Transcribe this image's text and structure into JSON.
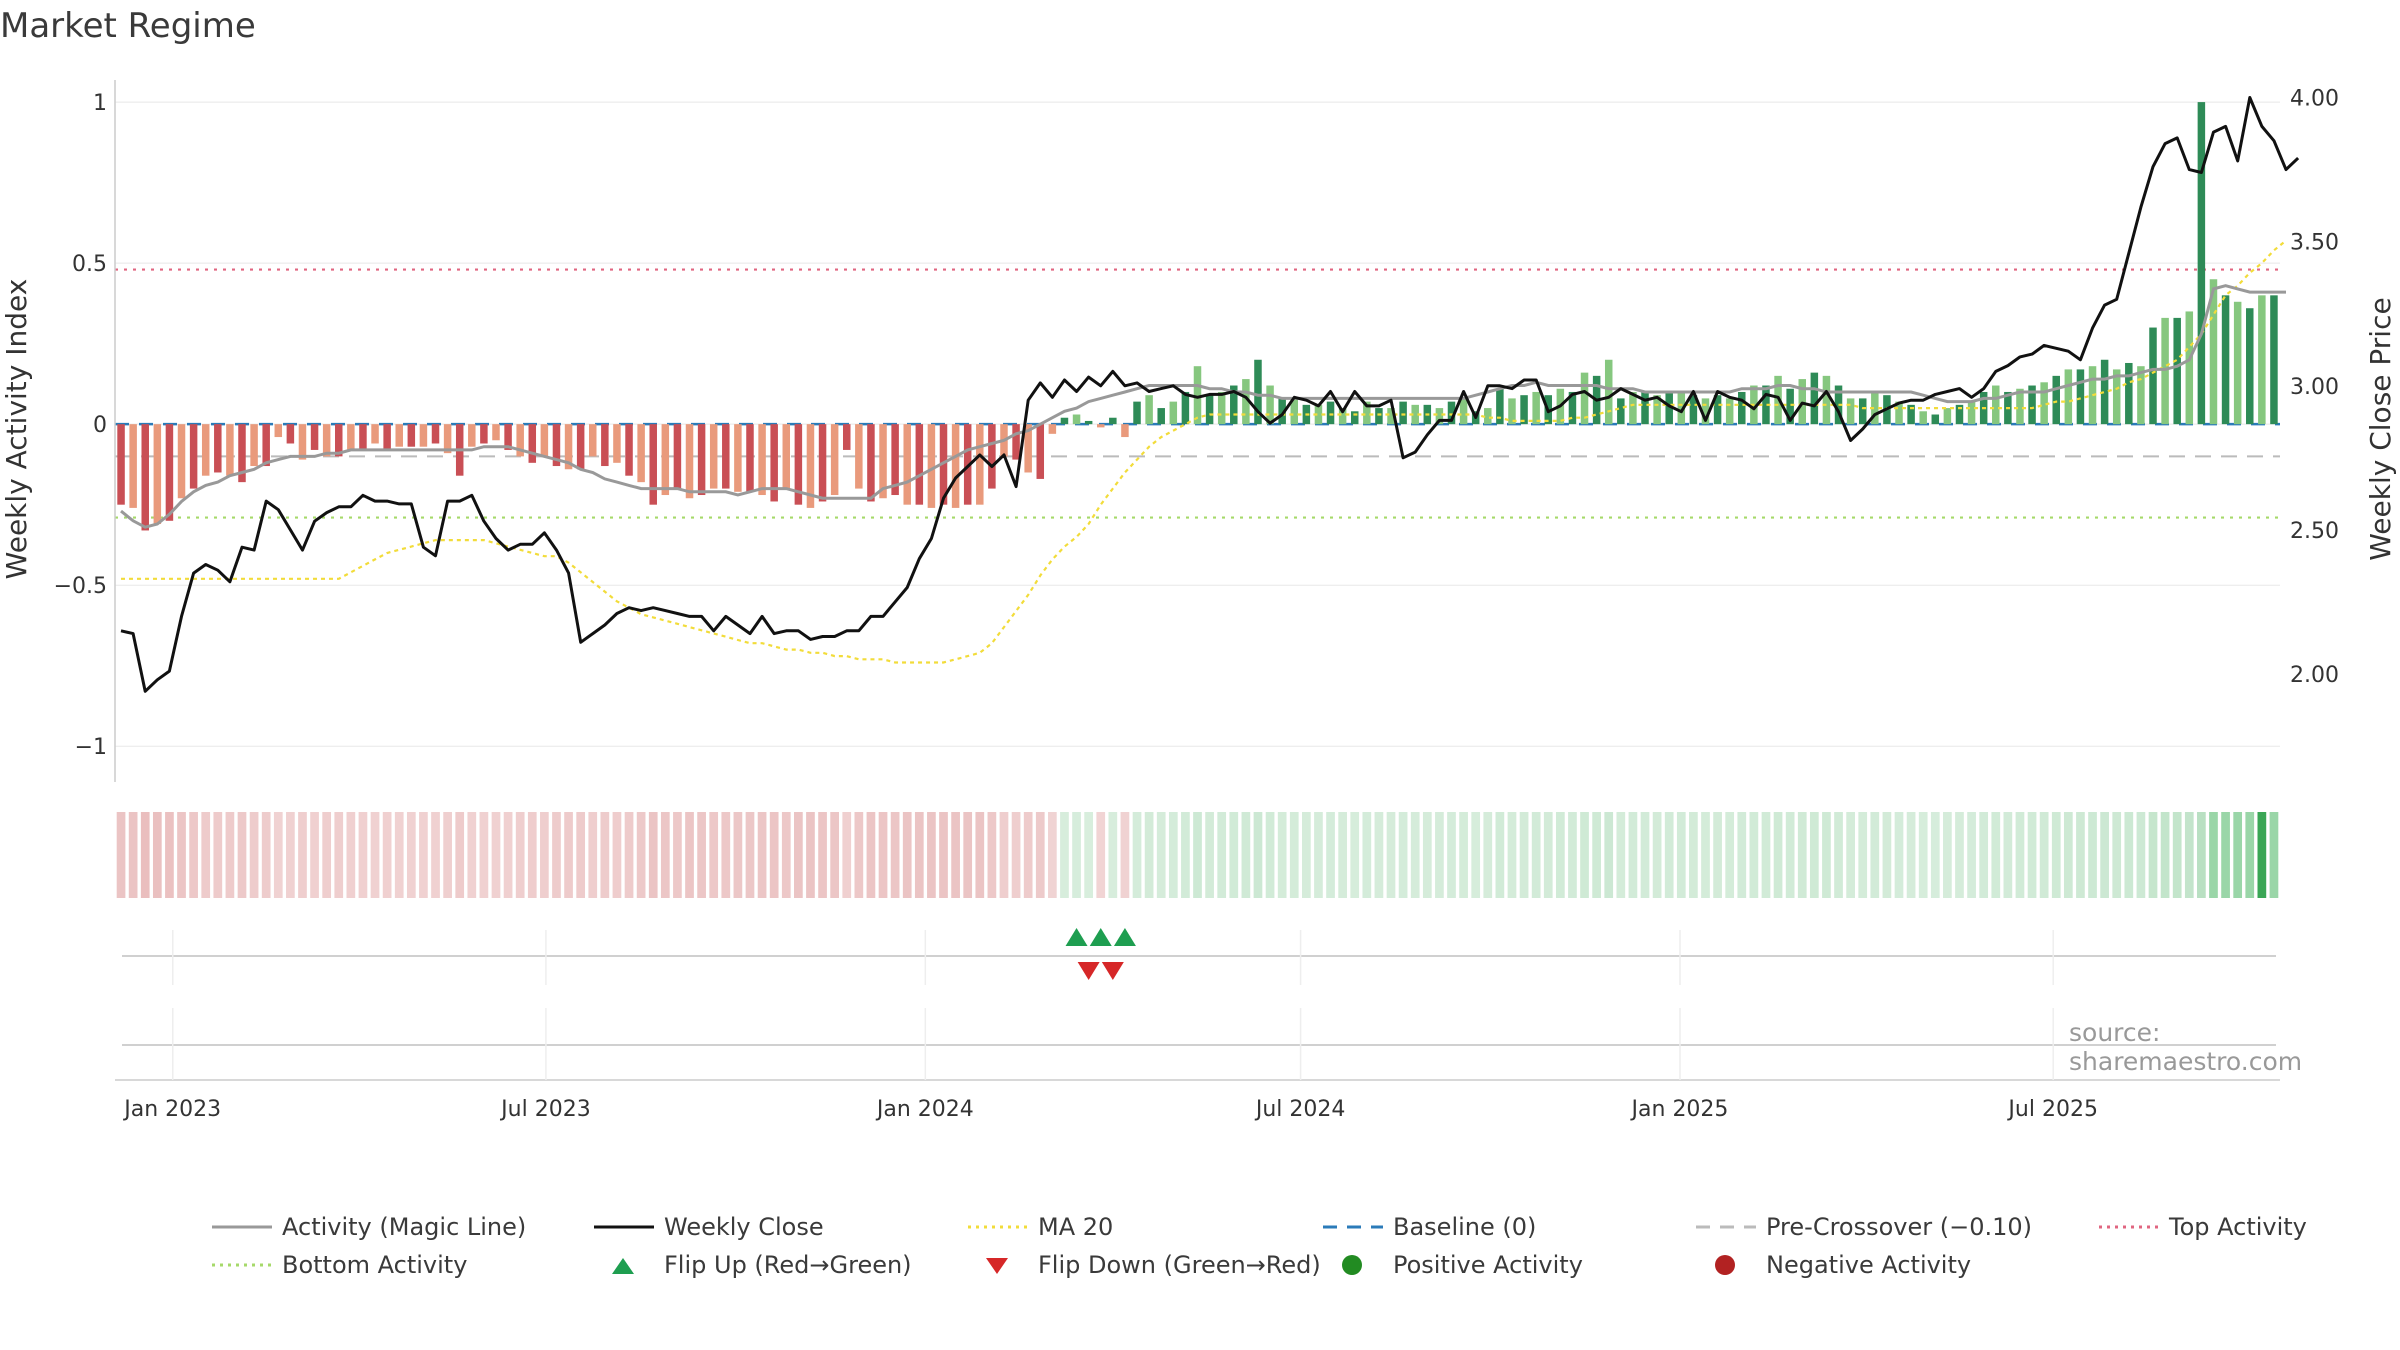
{
  "title": "Market Regime",
  "source": "source: sharemaestro.com",
  "colors": {
    "red_dark": "#c94f55",
    "red_light": "#e99a7c",
    "green_dark": "#2e8b57",
    "green_light": "#86c77f",
    "green_bright": "#1e9e50",
    "weekly_close": "#111111",
    "magic_line": "#999999",
    "ma20": "#f2dc3a",
    "baseline": "#2b7bb9",
    "pre_crossover": "#bbbbbb",
    "top_activity": "#e06680",
    "bottom_activity": "#a6d96a",
    "flip_up": "#1e9e50",
    "flip_down": "#d62728",
    "regime_red": "#e6b3b3",
    "regime_green": "#b9e0c2"
  },
  "legend": [
    {
      "key": "magic",
      "label": "Activity (Magic Line)",
      "style": "solid",
      "color": "#999999"
    },
    {
      "key": "close",
      "label": "Weekly Close",
      "style": "solid",
      "color": "#111111"
    },
    {
      "key": "ma20",
      "label": "MA 20",
      "style": "dotted",
      "color": "#f2dc3a"
    },
    {
      "key": "baseline",
      "label": "Baseline (0)",
      "style": "dashed",
      "color": "#2b7bb9"
    },
    {
      "key": "pre",
      "label": "Pre-Crossover (−0.10)",
      "style": "dashed",
      "color": "#bbbbbb"
    },
    {
      "key": "top",
      "label": "Top Activity",
      "style": "dotted",
      "color": "#e06680"
    },
    {
      "key": "bottom",
      "label": "Bottom Activity",
      "style": "dotted",
      "color": "#a6d96a"
    },
    {
      "key": "flipup",
      "label": "Flip Up (Red→Green)",
      "style": "triangle-up",
      "color": "#1e9e50"
    },
    {
      "key": "flipdown",
      "label": "Flip Down (Green→Red)",
      "style": "triangle-down",
      "color": "#d62728"
    },
    {
      "key": "pos",
      "label": "Positive Activity",
      "style": "circle",
      "color": "#228b22"
    },
    {
      "key": "neg",
      "label": "Negative Activity",
      "style": "circle",
      "color": "#b22222"
    }
  ],
  "chart_data": {
    "type": "bar",
    "title": "Market Regime",
    "ylabel": "Weekly Activity Index",
    "y2label": "Weekly Close Price",
    "ylim": [
      -1.08,
      1.05
    ],
    "y2lim": [
      1.66,
      4.04
    ],
    "y_ticks": [
      {
        "v": 1,
        "label": "1"
      },
      {
        "v": 0.5,
        "label": "0.5"
      },
      {
        "v": 0,
        "label": "0"
      },
      {
        "v": -0.5,
        "label": "−0.5"
      },
      {
        "v": -1,
        "label": "−1"
      }
    ],
    "y2_ticks": [
      {
        "v": 4.0,
        "label": "4.00"
      },
      {
        "v": 3.5,
        "label": "3.50"
      },
      {
        "v": 3.0,
        "label": "3.00"
      },
      {
        "v": 2.5,
        "label": "2.50"
      },
      {
        "v": 2.0,
        "label": "2.00"
      }
    ],
    "x_ticks": [
      {
        "date": "2023-01-01",
        "label": "Jan 2023"
      },
      {
        "date": "2023-07-01",
        "label": "Jul 2023"
      },
      {
        "date": "2024-01-01",
        "label": "Jan 2024"
      },
      {
        "date": "2024-07-01",
        "label": "Jul 2024"
      },
      {
        "date": "2025-01-01",
        "label": "Jan 2025"
      },
      {
        "date": "2025-07-01",
        "label": "Jul 2025"
      }
    ],
    "x_start": "2022-12-04",
    "x_end": "2025-10-19",
    "top_activity": 0.48,
    "bottom_activity": -0.29,
    "baseline": 0,
    "pre_crossover": -0.1,
    "activity": [
      -0.25,
      -0.26,
      -0.33,
      -0.31,
      -0.3,
      -0.23,
      -0.2,
      -0.16,
      -0.15,
      -0.16,
      -0.18,
      -0.13,
      -0.13,
      -0.04,
      -0.06,
      -0.11,
      -0.08,
      -0.1,
      -0.1,
      -0.08,
      -0.08,
      -0.06,
      -0.08,
      -0.07,
      -0.07,
      -0.07,
      -0.06,
      -0.09,
      -0.16,
      -0.07,
      -0.06,
      -0.05,
      -0.08,
      -0.1,
      -0.12,
      -0.1,
      -0.13,
      -0.14,
      -0.14,
      -0.1,
      -0.13,
      -0.12,
      -0.16,
      -0.18,
      -0.25,
      -0.22,
      -0.2,
      -0.23,
      -0.22,
      -0.2,
      -0.2,
      -0.21,
      -0.21,
      -0.22,
      -0.24,
      -0.2,
      -0.25,
      -0.26,
      -0.24,
      -0.22,
      -0.08,
      -0.2,
      -0.24,
      -0.23,
      -0.22,
      -0.25,
      -0.25,
      -0.26,
      -0.25,
      -0.26,
      -0.25,
      -0.25,
      -0.2,
      -0.1,
      -0.11,
      -0.15,
      -0.17,
      -0.03,
      0.02,
      0.03,
      0.01,
      -0.01,
      0.02,
      -0.04,
      0.07,
      0.09,
      0.05,
      0.07,
      0.1,
      0.18,
      0.09,
      0.1,
      0.12,
      0.14,
      0.2,
      0.12,
      0.08,
      0.08,
      0.06,
      0.06,
      0.07,
      0.05,
      0.04,
      0.07,
      0.05,
      0.05,
      0.07,
      0.06,
      0.06,
      0.05,
      0.07,
      0.08,
      0.04,
      0.05,
      0.11,
      0.08,
      0.09,
      0.1,
      0.09,
      0.11,
      0.1,
      0.16,
      0.15,
      0.2,
      0.08,
      0.1,
      0.1,
      0.09,
      0.1,
      0.1,
      0.09,
      0.08,
      0.09,
      0.08,
      0.1,
      0.12,
      0.12,
      0.15,
      0.11,
      0.14,
      0.16,
      0.15,
      0.12,
      0.08,
      0.08,
      0.1,
      0.09,
      0.07,
      0.06,
      0.04,
      0.03,
      0.05,
      0.06,
      0.07,
      0.1,
      0.12,
      0.1,
      0.11,
      0.12,
      0.13,
      0.15,
      0.17,
      0.17,
      0.18,
      0.2,
      0.17,
      0.19,
      0.18,
      0.3,
      0.33,
      0.33,
      0.35,
      1.0,
      0.45,
      0.4,
      0.38,
      0.36,
      0.4,
      0.4
    ],
    "close": [
      2.15,
      2.14,
      1.94,
      1.98,
      2.01,
      2.2,
      2.35,
      2.38,
      2.36,
      2.32,
      2.44,
      2.43,
      2.6,
      2.57,
      2.5,
      2.43,
      2.53,
      2.56,
      2.58,
      2.58,
      2.62,
      2.6,
      2.6,
      2.59,
      2.59,
      2.44,
      2.41,
      2.6,
      2.6,
      2.62,
      2.53,
      2.47,
      2.43,
      2.45,
      2.45,
      2.49,
      2.43,
      2.35,
      2.11,
      2.14,
      2.17,
      2.21,
      2.23,
      2.22,
      2.23,
      2.22,
      2.21,
      2.2,
      2.2,
      2.15,
      2.2,
      2.17,
      2.14,
      2.2,
      2.14,
      2.15,
      2.15,
      2.12,
      2.13,
      2.13,
      2.15,
      2.15,
      2.2,
      2.2,
      2.25,
      2.3,
      2.4,
      2.47,
      2.61,
      2.68,
      2.72,
      2.76,
      2.72,
      2.76,
      2.65,
      2.95,
      3.01,
      2.96,
      3.02,
      2.98,
      3.03,
      3.0,
      3.05,
      3.0,
      3.01,
      2.98,
      2.99,
      3.0,
      2.97,
      2.96,
      2.97,
      2.97,
      2.98,
      2.96,
      2.91,
      2.87,
      2.9,
      2.96,
      2.95,
      2.93,
      2.98,
      2.91,
      2.98,
      2.93,
      2.93,
      2.95,
      2.75,
      2.77,
      2.83,
      2.88,
      2.88,
      2.98,
      2.89,
      3.0,
      3.0,
      2.99,
      3.02,
      3.02,
      2.91,
      2.93,
      2.97,
      2.98,
      2.95,
      2.96,
      2.99,
      2.97,
      2.95,
      2.96,
      2.93,
      2.91,
      2.98,
      2.88,
      2.98,
      2.96,
      2.95,
      2.92,
      2.97,
      2.96,
      2.88,
      2.94,
      2.93,
      2.98,
      2.91,
      2.81,
      2.85,
      2.9,
      2.92,
      2.94,
      2.95,
      2.95,
      2.97,
      2.98,
      2.99,
      2.96,
      2.99,
      3.05,
      3.07,
      3.1,
      3.11,
      3.14,
      3.13,
      3.12,
      3.09,
      3.2,
      3.28,
      3.3,
      3.46,
      3.62,
      3.76,
      3.84,
      3.86,
      3.75,
      3.74,
      3.88,
      3.9,
      3.78,
      4.0,
      3.9,
      3.85,
      3.75,
      3.79
    ],
    "magic": [
      -0.27,
      -0.3,
      -0.32,
      -0.31,
      -0.28,
      -0.24,
      -0.21,
      -0.19,
      -0.18,
      -0.16,
      -0.15,
      -0.14,
      -0.12,
      -0.11,
      -0.1,
      -0.1,
      -0.1,
      -0.09,
      -0.09,
      -0.08,
      -0.08,
      -0.08,
      -0.08,
      -0.08,
      -0.08,
      -0.08,
      -0.08,
      -0.08,
      -0.08,
      -0.08,
      -0.07,
      -0.07,
      -0.07,
      -0.08,
      -0.09,
      -0.1,
      -0.11,
      -0.12,
      -0.14,
      -0.15,
      -0.17,
      -0.18,
      -0.19,
      -0.2,
      -0.2,
      -0.2,
      -0.2,
      -0.21,
      -0.21,
      -0.21,
      -0.21,
      -0.22,
      -0.21,
      -0.2,
      -0.2,
      -0.2,
      -0.21,
      -0.22,
      -0.23,
      -0.23,
      -0.23,
      -0.23,
      -0.23,
      -0.2,
      -0.19,
      -0.18,
      -0.16,
      -0.14,
      -0.12,
      -0.1,
      -0.08,
      -0.07,
      -0.06,
      -0.05,
      -0.03,
      -0.02,
      0.0,
      0.02,
      0.04,
      0.05,
      0.07,
      0.08,
      0.09,
      0.1,
      0.11,
      0.12,
      0.12,
      0.12,
      0.12,
      0.12,
      0.11,
      0.11,
      0.1,
      0.1,
      0.09,
      0.09,
      0.08,
      0.08,
      0.08,
      0.08,
      0.08,
      0.08,
      0.08,
      0.08,
      0.08,
      0.08,
      0.08,
      0.08,
      0.08,
      0.08,
      0.08,
      0.08,
      0.09,
      0.1,
      0.11,
      0.12,
      0.12,
      0.13,
      0.12,
      0.12,
      0.12,
      0.12,
      0.12,
      0.11,
      0.11,
      0.11,
      0.1,
      0.1,
      0.1,
      0.1,
      0.1,
      0.1,
      0.1,
      0.1,
      0.11,
      0.11,
      0.11,
      0.12,
      0.12,
      0.11,
      0.11,
      0.1,
      0.1,
      0.1,
      0.1,
      0.1,
      0.1,
      0.1,
      0.1,
      0.09,
      0.08,
      0.07,
      0.07,
      0.07,
      0.08,
      0.08,
      0.09,
      0.1,
      0.1,
      0.1,
      0.11,
      0.12,
      0.13,
      0.14,
      0.14,
      0.15,
      0.15,
      0.16,
      0.17,
      0.17,
      0.18,
      0.2,
      0.28,
      0.42,
      0.43,
      0.42,
      0.41,
      0.41,
      0.41,
      0.41
    ],
    "ma20": [
      -0.48,
      -0.48,
      -0.48,
      -0.48,
      -0.48,
      -0.48,
      -0.48,
      -0.48,
      -0.48,
      -0.48,
      -0.48,
      -0.48,
      -0.48,
      -0.48,
      -0.48,
      -0.48,
      -0.48,
      -0.48,
      -0.48,
      -0.46,
      -0.44,
      -0.42,
      -0.4,
      -0.39,
      -0.38,
      -0.37,
      -0.36,
      -0.36,
      -0.36,
      -0.36,
      -0.36,
      -0.37,
      -0.38,
      -0.39,
      -0.4,
      -0.41,
      -0.41,
      -0.43,
      -0.46,
      -0.49,
      -0.52,
      -0.55,
      -0.57,
      -0.59,
      -0.6,
      -0.61,
      -0.62,
      -0.63,
      -0.64,
      -0.65,
      -0.66,
      -0.67,
      -0.68,
      -0.68,
      -0.69,
      -0.7,
      -0.7,
      -0.71,
      -0.71,
      -0.72,
      -0.72,
      -0.73,
      -0.73,
      -0.73,
      -0.74,
      -0.74,
      -0.74,
      -0.74,
      -0.74,
      -0.73,
      -0.72,
      -0.71,
      -0.68,
      -0.63,
      -0.58,
      -0.53,
      -0.47,
      -0.42,
      -0.38,
      -0.35,
      -0.31,
      -0.25,
      -0.2,
      -0.15,
      -0.11,
      -0.07,
      -0.04,
      -0.02,
      0.0,
      0.02,
      0.03,
      0.03,
      0.03,
      0.03,
      0.03,
      0.03,
      0.03,
      0.03,
      0.03,
      0.03,
      0.03,
      0.03,
      0.03,
      0.03,
      0.03,
      0.03,
      0.03,
      0.03,
      0.03,
      0.03,
      0.03,
      0.03,
      0.03,
      0.02,
      0.02,
      0.01,
      0.01,
      0.01,
      0.01,
      0.01,
      0.02,
      0.02,
      0.03,
      0.04,
      0.05,
      0.06,
      0.06,
      0.06,
      0.06,
      0.06,
      0.06,
      0.06,
      0.06,
      0.06,
      0.06,
      0.06,
      0.06,
      0.06,
      0.06,
      0.06,
      0.06,
      0.06,
      0.06,
      0.06,
      0.05,
      0.05,
      0.05,
      0.05,
      0.05,
      0.05,
      0.05,
      0.05,
      0.05,
      0.05,
      0.05,
      0.05,
      0.05,
      0.05,
      0.05,
      0.06,
      0.07,
      0.07,
      0.08,
      0.09,
      0.1,
      0.11,
      0.13,
      0.14,
      0.16,
      0.18,
      0.2,
      0.24,
      0.28,
      0.34,
      0.4,
      0.43,
      0.47,
      0.5,
      0.54,
      0.57
    ],
    "flip_up_weeks": [
      79,
      81,
      83
    ],
    "flip_down_weeks": [
      80,
      82
    ],
    "regime_bar_highlight_week": 177
  }
}
